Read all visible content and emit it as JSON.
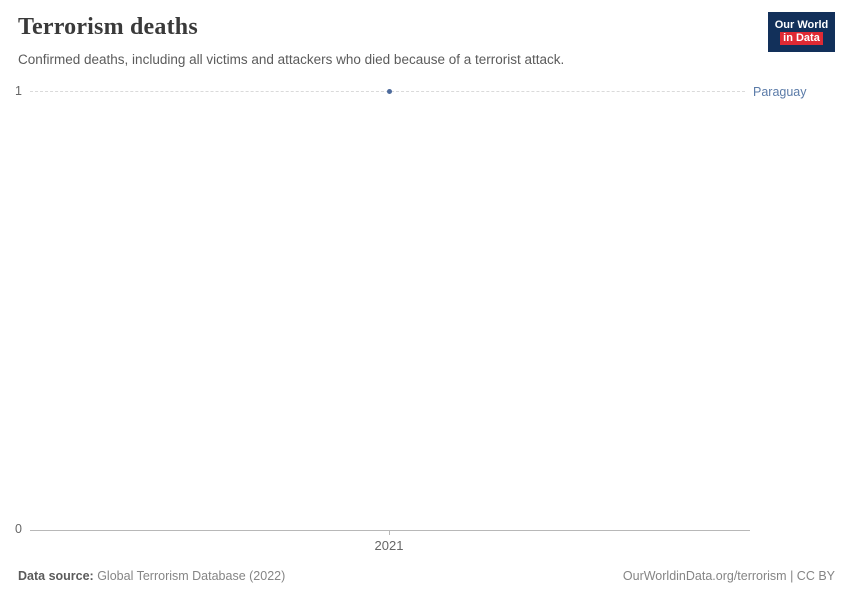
{
  "header": {
    "title": "Terrorism deaths",
    "subtitle": "Confirmed deaths, including all victims and attackers who died because of a terrorist attack.",
    "logo": {
      "line1": "Our World",
      "line2": "in Data"
    }
  },
  "chart_data": {
    "type": "scatter",
    "title": "Terrorism deaths",
    "subtitle": "Confirmed deaths, including all victims and attackers who died because of a terrorist attack.",
    "series": [
      {
        "name": "Paraguay",
        "x": [
          2021
        ],
        "values": [
          1
        ]
      }
    ],
    "entity_label": "Paraguay",
    "x_ticks": [
      "2021"
    ],
    "y_ticks": [
      "0",
      "1"
    ],
    "ylim": [
      0,
      1
    ],
    "xlabel": "",
    "ylabel": "",
    "grid": "dashed horizontal gridline at y=1, solid baseline at y=0",
    "legend_position": "right of gridline",
    "colors": {
      "point": "#4c6a9c",
      "entity_label": "#5b7ba8",
      "logo_bg": "#12305a",
      "logo_red": "#e02a34"
    }
  },
  "footer": {
    "source_label": "Data source:",
    "source_value": " Global Terrorism Database (2022)",
    "attribution": "OurWorldinData.org/terrorism | CC BY"
  }
}
